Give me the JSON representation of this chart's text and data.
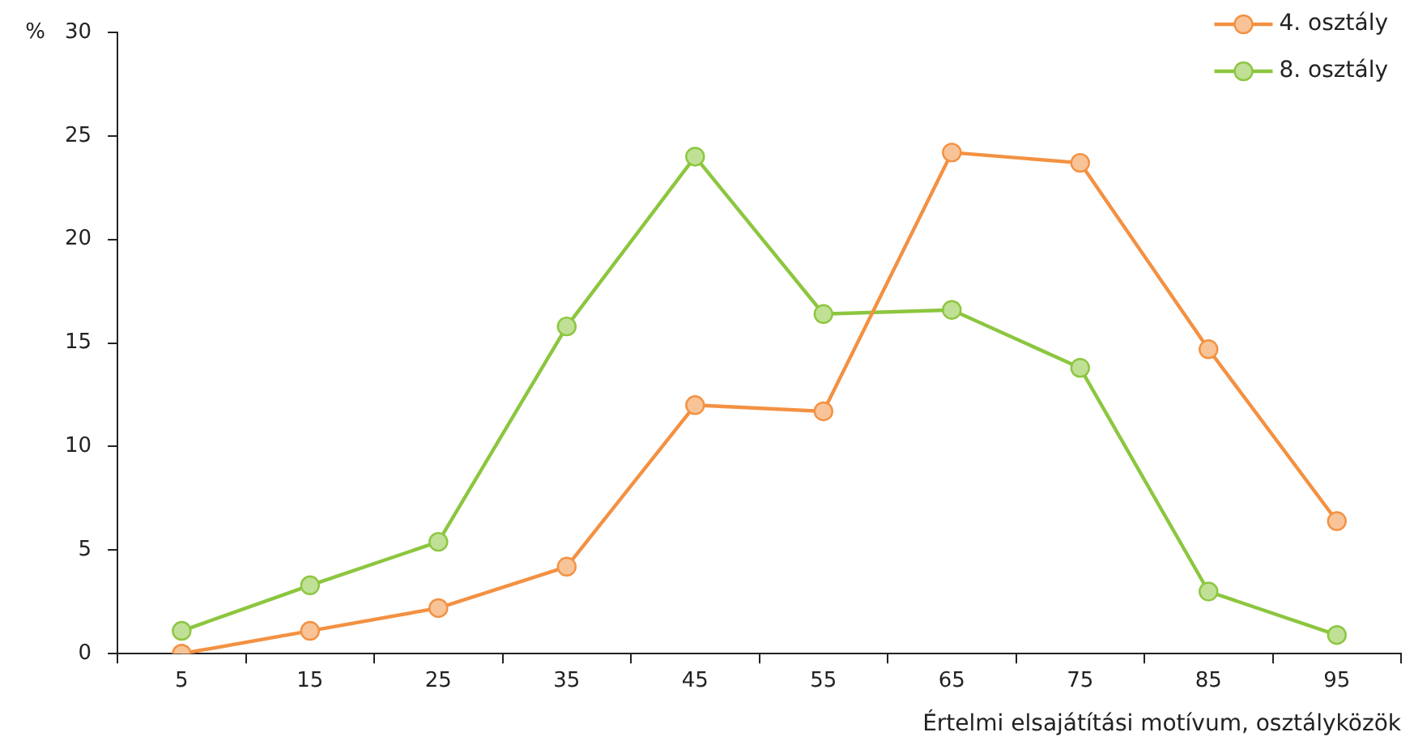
{
  "chart_data": {
    "type": "line",
    "ylabel": "%",
    "xlabel": "Értelmi elsajátítási motívum, osztályközök",
    "categories": [
      "5",
      "15",
      "25",
      "35",
      "45",
      "55",
      "65",
      "75",
      "85",
      "95"
    ],
    "series": [
      {
        "name": "4. osztály",
        "color": "#f39142",
        "values": [
          0,
          1.1,
          2.2,
          4.2,
          12.0,
          11.7,
          24.2,
          23.7,
          14.7,
          6.4
        ]
      },
      {
        "name": "8. osztály",
        "color": "#8cc63f",
        "values": [
          1.1,
          3.3,
          5.4,
          15.8,
          24.0,
          16.4,
          16.6,
          13.8,
          3.0,
          0.9
        ]
      }
    ],
    "ylim": [
      0,
      30
    ],
    "yticks": [
      0,
      5,
      10,
      15,
      20,
      25,
      30
    ],
    "grid": false,
    "legend": "top right",
    "marker": "circle",
    "line_style": "solid"
  }
}
